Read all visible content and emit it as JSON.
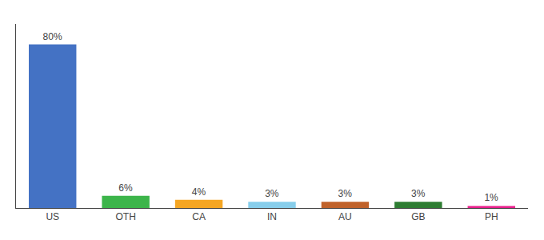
{
  "chart_data": {
    "type": "bar",
    "categories": [
      "US",
      "OTH",
      "CA",
      "IN",
      "AU",
      "GB",
      "PH"
    ],
    "values": [
      80,
      6,
      4,
      3,
      3,
      3,
      1
    ],
    "value_labels": [
      "80%",
      "6%",
      "4%",
      "3%",
      "3%",
      "3%",
      "1%"
    ],
    "data_labels": true,
    "colors": [
      "#4472c4",
      "#3cb54a",
      "#f5a623",
      "#87ceeb",
      "#c0622a",
      "#2e7d32",
      "#e91e8c"
    ],
    "ylim": [
      0,
      90
    ],
    "grid": false,
    "tick_labels": "x"
  }
}
